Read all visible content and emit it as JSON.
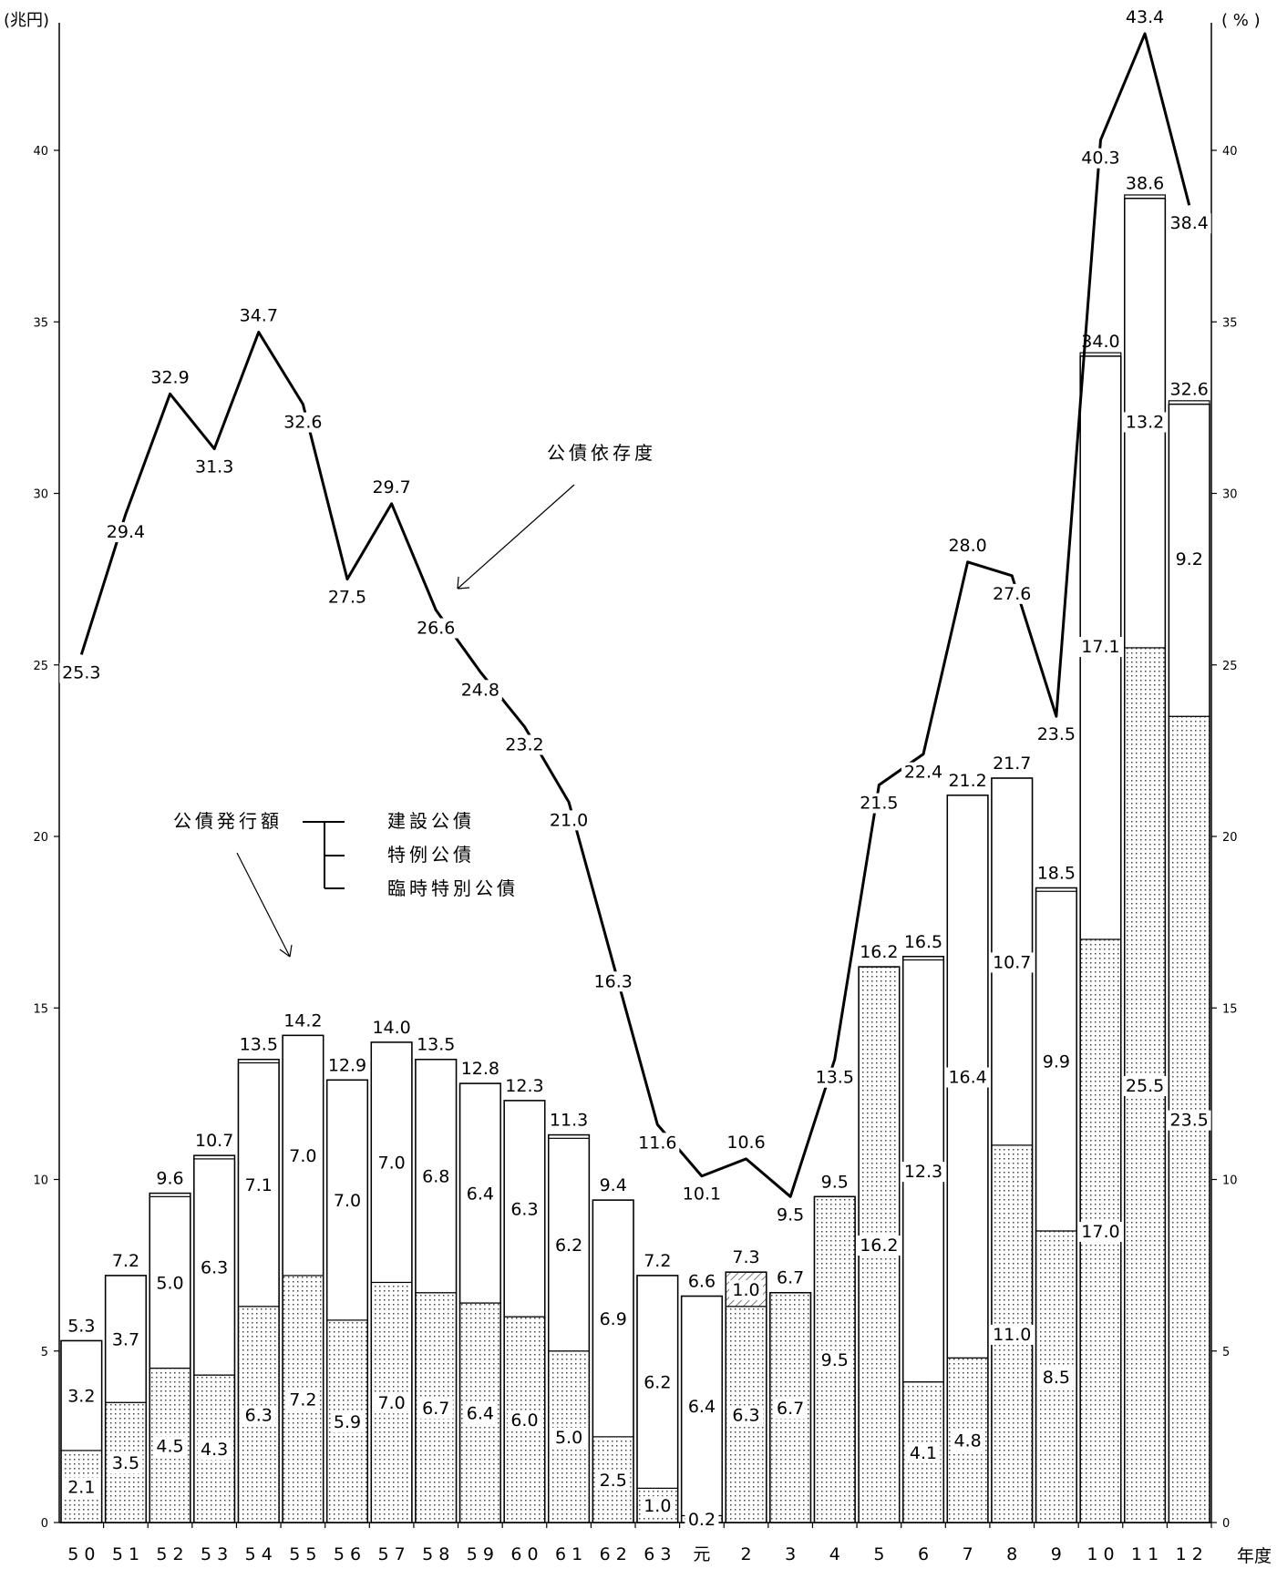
{
  "chart_data": {
    "type": "bar+line",
    "left_axis_unit": "(兆円)",
    "right_axis_unit": "( % )",
    "x_axis_label": "年度",
    "ylim": [
      0,
      45
    ],
    "yticks": [
      "0",
      "5",
      "10",
      "15",
      "20",
      "25",
      "30",
      "35",
      "40"
    ],
    "categories": [
      "5 0",
      "5 1",
      "5 2",
      "5 3",
      "5 4",
      "5 5",
      "5 6",
      "5 7",
      "5 8",
      "5 9",
      "6 0",
      "6 1",
      "6 2",
      "6 3",
      "元",
      "2",
      "3",
      "4",
      "5",
      "6",
      "7",
      "8",
      "9",
      "1 0",
      "1 1",
      "1 2"
    ],
    "bar_totals": [
      5.3,
      7.2,
      9.6,
      10.7,
      13.5,
      14.2,
      12.9,
      14.0,
      13.5,
      12.8,
      12.3,
      11.3,
      9.4,
      7.2,
      6.6,
      7.3,
      6.7,
      9.5,
      16.2,
      16.5,
      21.2,
      21.7,
      18.5,
      34.0,
      38.6,
      32.6
    ],
    "bar_total_labels": [
      "5.3",
      "7.2",
      "9.6",
      "10.7",
      "13.5",
      "14.2",
      "12.9",
      "14.0",
      "13.5",
      "12.8",
      "12.3",
      "11.3",
      "9.4",
      "7.2",
      "6.6",
      "7.3",
      "6.7",
      "9.5",
      "16.2",
      "16.5",
      "21.2",
      "21.7",
      "18.5",
      "34.0",
      "38.6",
      "32.6"
    ],
    "series": [
      {
        "name": "建設公債",
        "pattern": "dotted",
        "values": [
          2.1,
          3.5,
          4.5,
          4.3,
          6.3,
          7.2,
          5.9,
          7.0,
          6.7,
          6.4,
          6.0,
          5.0,
          2.5,
          1.0,
          0.2,
          6.3,
          6.7,
          9.5,
          16.2,
          4.1,
          4.8,
          11.0,
          8.5,
          17.0,
          25.5,
          23.5
        ],
        "labels": [
          "2.1",
          "3.5",
          "4.5",
          "4.3",
          "6.3",
          "7.2",
          "5.9",
          "7.0",
          "6.7",
          "6.4",
          "6.0",
          "5.0",
          "2.5",
          "1.0",
          "0.2",
          "6.3",
          "6.7",
          "9.5",
          "16.2",
          "4.1",
          "4.8",
          "11.0",
          "8.5",
          "17.0",
          "25.5",
          "23.5"
        ]
      },
      {
        "name": "特例公債",
        "pattern": "white",
        "values": [
          3.2,
          3.7,
          5.0,
          6.3,
          7.1,
          7.0,
          7.0,
          7.0,
          6.8,
          6.4,
          6.3,
          6.2,
          6.9,
          6.2,
          6.4,
          0,
          0,
          0,
          0,
          12.3,
          16.4,
          10.7,
          9.9,
          17.1,
          13.2,
          9.2
        ],
        "labels": [
          "3.2",
          "3.7",
          "5.0",
          "6.3",
          "7.1",
          "7.0",
          "7.0",
          "7.0",
          "6.8",
          "6.4",
          "6.3",
          "6.2",
          "6.9",
          "6.2",
          "6.4",
          "",
          "",
          "",
          "",
          "12.3",
          "16.4",
          "10.7",
          "9.9",
          "17.1",
          "13.2",
          "9.2"
        ]
      },
      {
        "name": "臨時特別公債",
        "pattern": "hatched",
        "values": [
          0,
          0,
          0,
          0,
          0,
          0,
          0,
          0,
          0,
          0,
          0,
          0,
          0,
          0,
          0,
          1.0,
          0,
          0,
          0,
          0,
          0,
          0,
          0,
          0,
          0,
          0
        ],
        "labels": [
          "",
          "",
          "",
          "",
          "",
          "",
          "",
          "",
          "",
          "",
          "",
          "",
          "",
          "",
          "",
          "1.0",
          "",
          "",
          "",
          "",
          "",
          "",
          "",
          "",
          "",
          ""
        ]
      },
      {
        "name": "公債依存度",
        "type": "line",
        "unit": "%",
        "values": [
          25.3,
          29.4,
          32.9,
          31.3,
          34.7,
          32.6,
          27.5,
          29.7,
          26.6,
          24.8,
          23.2,
          21.0,
          16.3,
          11.6,
          10.1,
          10.6,
          9.5,
          13.5,
          21.5,
          22.4,
          28.0,
          27.6,
          23.5,
          40.3,
          43.4,
          38.4
        ],
        "labels": [
          "25.3",
          "29.4",
          "32.9",
          "31.3",
          "34.7",
          "32.6",
          "27.5",
          "29.7",
          "26.6",
          "24.8",
          "23.2",
          "21.0",
          "16.3",
          "11.6",
          "10.1",
          "10.6",
          "9.5",
          "13.5",
          "21.5",
          "22.4",
          "28.0",
          "27.6",
          "23.5",
          "40.3",
          "43.4",
          "38.4"
        ]
      }
    ],
    "legend": {
      "issuance_label": "公債発行額",
      "items": [
        "建設公債",
        "特例公債",
        "臨時特別公債"
      ],
      "ratio_label": "公債依存度"
    }
  }
}
